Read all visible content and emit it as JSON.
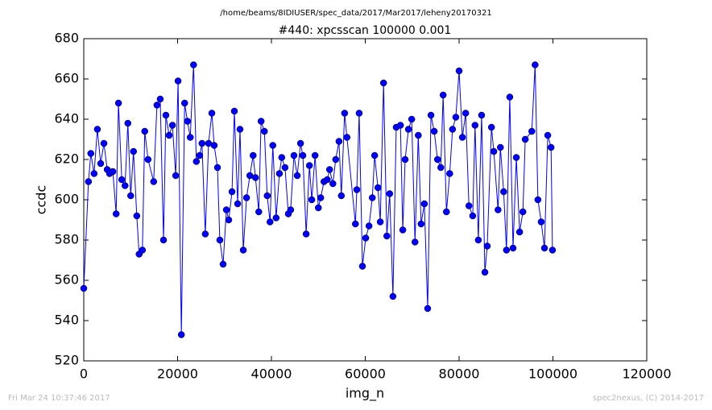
{
  "chart_data": {
    "type": "line",
    "suptitle": "/home/beams/8IDIUSER/spec_data/2017/Mar2017/leheny20170321",
    "title": "#440: xpcsscan 100000 0.001",
    "x_label": "img_n",
    "y_label": "ccdc",
    "footer_left": "Fri Mar 24 10:37:46 2017",
    "footer_right": "spec2nexus, (C) 2014-2017",
    "color": "#0000ff",
    "marker": "o",
    "x": [
      0,
      1000,
      1500,
      2200,
      2900,
      3600,
      4300,
      5000,
      5500,
      6200,
      6900,
      7400,
      8100,
      8800,
      9400,
      10000,
      10600,
      11300,
      11800,
      12500,
      13000,
      13700,
      14900,
      15600,
      16300,
      17000,
      17500,
      18200,
      18900,
      19600,
      20100,
      20800,
      21500,
      22100,
      22700,
      23400,
      24000,
      24700,
      25200,
      25900,
      26600,
      27300,
      27800,
      28500,
      29000,
      29700,
      30400,
      30900,
      31600,
      32100,
      32800,
      33300,
      34000,
      34700,
      35400,
      36100,
      36600,
      37300,
      37800,
      38500,
      39100,
      39700,
      40300,
      41000,
      41700,
      42200,
      42900,
      43600,
      44100,
      44800,
      45500,
      46200,
      46700,
      47400,
      48100,
      48600,
      49300,
      50000,
      50500,
      51200,
      51900,
      52400,
      53100,
      53700,
      54400,
      54900,
      55600,
      56100,
      57900,
      58200,
      58700,
      59400,
      60100,
      60800,
      61500,
      62000,
      62700,
      63200,
      63900,
      64600,
      65200,
      65900,
      66600,
      67500,
      68000,
      68500,
      69200,
      69900,
      70600,
      71300,
      71900,
      72600,
      73300,
      74000,
      74700,
      75400,
      76100,
      76600,
      77300,
      78000,
      78600,
      79300,
      80000,
      80700,
      81400,
      82100,
      82900,
      83400,
      84100,
      84800,
      85500,
      86000,
      86900,
      87400,
      88300,
      88800,
      89500,
      90100,
      90800,
      91500,
      92200,
      92900,
      93600,
      94100,
      95500,
      96200,
      96800,
      97500,
      98200,
      98900,
      99600,
      99900
    ],
    "y": [
      556,
      609,
      623,
      613,
      635,
      618,
      628,
      615,
      613,
      614,
      593,
      648,
      610,
      607,
      638,
      602,
      624,
      592,
      573,
      575,
      634,
      620,
      609,
      647,
      650,
      580,
      642,
      632,
      637,
      612,
      659,
      533,
      648,
      639,
      631,
      667,
      619,
      622,
      628,
      583,
      628,
      643,
      627,
      616,
      580,
      568,
      595,
      590,
      604,
      644,
      598,
      635,
      575,
      601,
      612,
      622,
      611,
      594,
      639,
      634,
      602,
      589,
      627,
      591,
      613,
      621,
      616,
      593,
      595,
      622,
      612,
      628,
      622,
      583,
      617,
      600,
      622,
      596,
      601,
      609,
      610,
      615,
      608,
      620,
      629,
      602,
      643,
      631,
      588,
      605,
      643,
      567,
      581,
      587,
      601,
      622,
      606,
      589,
      658,
      582,
      603,
      552,
      636,
      637,
      585,
      620,
      635,
      640,
      579,
      632,
      588,
      598,
      546,
      642,
      634,
      620,
      616,
      652,
      594,
      613,
      635,
      641,
      664,
      631,
      643,
      597,
      592,
      637,
      580,
      642,
      564,
      577,
      636,
      624,
      595,
      626,
      604,
      575,
      651,
      576,
      621,
      584,
      594,
      630,
      634,
      667,
      600,
      589,
      576,
      632,
      626,
      575
    ],
    "xlim": [
      0,
      120000
    ],
    "ylim": [
      520,
      680
    ],
    "xticks": [
      0,
      20000,
      40000,
      60000,
      80000,
      100000,
      120000
    ],
    "yticks": [
      520,
      540,
      560,
      580,
      600,
      620,
      640,
      660,
      680
    ],
    "grid": false
  }
}
